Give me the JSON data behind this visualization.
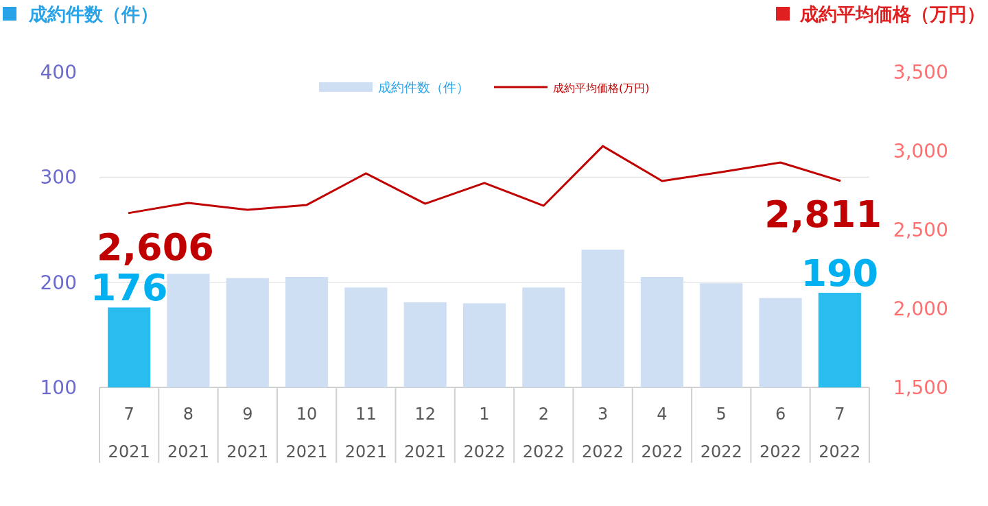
{
  "chart_data": {
    "type": "bar",
    "ylabel": "成約件数（件）",
    "y2label": "成約平均価格（万円）",
    "categories": [
      "7 2021",
      "8 2021",
      "9 2021",
      "10 2021",
      "11 2021",
      "12 2021",
      "1 2022",
      "2 2022",
      "3 2022",
      "4 2022",
      "5 2022",
      "6 2022",
      "7 2022"
    ],
    "series": [
      {
        "name": "成約件数（件）",
        "color": "#cfdff3",
        "colors": [
          "#29bcef",
          "#cfdff3",
          "#cfdff3",
          "#cfdff3",
          "#cfdff3",
          "#cfdff3",
          "#cfdff3",
          "#cfdff3",
          "#cfdff3",
          "#cfdff3",
          "#cfdff3",
          "#cfdff3",
          "#29bcef"
        ],
        "values": [
          176,
          208,
          204,
          205,
          195,
          181,
          180,
          195,
          231,
          205,
          199,
          185,
          190
        ],
        "value_labels": [
          "176",
          null,
          null,
          null,
          null,
          null,
          null,
          null,
          null,
          null,
          null,
          null,
          "190"
        ]
      },
      {
        "name": "成約平均価格(万円)",
        "type": "line",
        "axis": "y2",
        "color": "#c00000",
        "values": [
          2606,
          2670,
          2626,
          2657,
          2857,
          2665,
          2796,
          2652,
          3030,
          2809,
          2865,
          2926,
          2811
        ],
        "value_labels": [
          "2,606",
          null,
          null,
          null,
          null,
          null,
          null,
          null,
          null,
          null,
          null,
          null,
          "2,811"
        ]
      }
    ],
    "ylim": [
      100,
      400
    ],
    "yticks": [
      100,
      200,
      300,
      400
    ],
    "y2lim": [
      1500,
      3500
    ],
    "y2ticks": [
      {
        "value": 1500,
        "label": "1,500"
      },
      {
        "value": 2000,
        "label": "2,000"
      },
      {
        "value": 2500,
        "label": "2,500"
      },
      {
        "value": 3000,
        "label": "3,000"
      },
      {
        "value": 3500,
        "label": "3,500"
      }
    ],
    "grid": "y",
    "legend": "top",
    "marker": "none",
    "line_style": "solid"
  }
}
